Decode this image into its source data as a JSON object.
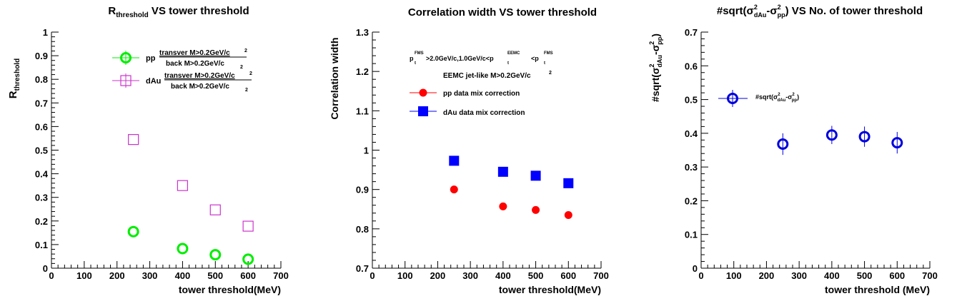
{
  "chart_data": [
    {
      "type": "scatter",
      "title_main": "R",
      "title_sub": "threshold",
      "title_rest": " VS tower threshold",
      "xlabel": "tower threshold(MeV)",
      "ylabel_main": "R",
      "ylabel_sub": "threshold",
      "xlim": [
        0,
        700
      ],
      "ylim": [
        0,
        1
      ],
      "xticks": [
        0,
        100,
        200,
        300,
        400,
        500,
        600,
        700
      ],
      "xtick_labels": [
        "0",
        "100",
        "200",
        "300",
        "400",
        "500",
        "600",
        "700"
      ],
      "yticks": [
        0,
        0.1,
        0.2,
        0.3,
        0.4,
        0.5,
        0.6,
        0.7,
        0.8,
        0.9,
        1
      ],
      "ytick_labels": [
        "0",
        "0.1",
        "0.2",
        "0.3",
        "0.4",
        "0.5",
        "0.6",
        "0.7",
        "0.8",
        "0.9",
        "1"
      ],
      "legend_position": "top-center",
      "legend": [
        {
          "name": "pp",
          "numerator": "transver M>0.2GeV/c",
          "denominator": "back M>0.2GeV/c",
          "exp": "2"
        },
        {
          "name": "dAu",
          "numerator": "transver M>0.2GeV/c",
          "denominator": "back M>0.2GeV/c",
          "exp": "2"
        }
      ],
      "series": [
        {
          "name": "pp",
          "marker": "open-circle",
          "color": "#00ee00",
          "x": [
            250,
            400,
            500,
            600
          ],
          "y": [
            0.155,
            0.083,
            0.057,
            0.038
          ]
        },
        {
          "name": "dAu",
          "marker": "open-square",
          "color": "#cc33cc",
          "x": [
            250,
            400,
            500,
            600
          ],
          "y": [
            0.545,
            0.35,
            0.247,
            0.178
          ]
        }
      ]
    },
    {
      "type": "scatter",
      "title": "Correlation width VS tower threshold",
      "xlabel": "tower threshold(MeV)",
      "ylabel": "Correlation width",
      "xlim": [
        0,
        700
      ],
      "ylim": [
        0.7,
        1.3
      ],
      "xticks": [
        0,
        100,
        200,
        300,
        400,
        500,
        600,
        700
      ],
      "xtick_labels": [
        "0",
        "100",
        "200",
        "300",
        "400",
        "500",
        "600",
        "700"
      ],
      "yticks": [
        0.7,
        0.8,
        0.9,
        1.0,
        1.1,
        1.2,
        1.3
      ],
      "ytick_labels": [
        "0.7",
        "0.8",
        "0.9",
        "1",
        "1.1",
        "1.2",
        "1.3"
      ],
      "legend_position": "top-center",
      "legend_header": {
        "line1_a": "p",
        "line1_a_sup": "FMS",
        "line1_a_sub": "t",
        "line1_b": ">2.0GeV/c,1.0GeV/c<p",
        "line1_b_sup": "EEMC",
        "line1_b_sub": "t",
        "line1_c": "<p",
        "line1_c_sup": "FMS",
        "line1_c_sub": "t",
        "line2": "EEMC jet-like M>0.2GeV/c",
        "line2_exp": "2"
      },
      "legend": [
        {
          "name": "pp data mix correction"
        },
        {
          "name": "dAu data mix correction"
        }
      ],
      "series": [
        {
          "name": "pp data mix correction",
          "marker": "filled-circle",
          "color": "#ff0000",
          "x": [
            250,
            400,
            500,
            600
          ],
          "y": [
            0.9,
            0.857,
            0.848,
            0.835
          ]
        },
        {
          "name": "dAu data mix correction",
          "marker": "filled-square",
          "color": "#0000ff",
          "x": [
            250,
            400,
            500,
            600
          ],
          "y": [
            0.973,
            0.945,
            0.935,
            0.916
          ]
        }
      ]
    },
    {
      "type": "scatter",
      "title_pre": "#sqrt(",
      "title_sigma": "σ",
      "title_sup": "2",
      "title_sub1": "dAu",
      "title_minus": "-",
      "title_sub2": "pp",
      "title_post": ") VS No. of tower threshold",
      "xlabel": "tower threshold (MeV)",
      "ylabel_pre": "#sqrt(",
      "ylabel_sigma": "σ",
      "ylabel_sup": "2",
      "ylabel_sub1": "dAu",
      "ylabel_minus": "-",
      "ylabel_sub2": "pp",
      "ylabel_post": ")",
      "xlim": [
        0,
        700
      ],
      "ylim": [
        0,
        0.7
      ],
      "xticks": [
        0,
        100,
        200,
        300,
        400,
        500,
        600,
        700
      ],
      "xtick_labels": [
        "0",
        "100",
        "200",
        "300",
        "400",
        "500",
        "600",
        "700"
      ],
      "yticks": [
        0,
        0.1,
        0.2,
        0.3,
        0.4,
        0.5,
        0.6,
        0.7
      ],
      "ytick_labels": [
        "0",
        "0.1",
        "0.2",
        "0.3",
        "0.4",
        "0.5",
        "0.6",
        "0.7"
      ],
      "legend_position": "top-left",
      "legend": [
        {
          "name_pre": "#sqrt(",
          "name_sigma": "σ",
          "name_sup": "2",
          "name_sub1": "dAu",
          "name_minus": "-",
          "name_sub2": "pp",
          "name_post": ")"
        }
      ],
      "series": [
        {
          "name": "#sqrt(σ²dAu-σ²pp)",
          "marker": "open-circle",
          "color": "#0000dd",
          "x": [
            250,
            400,
            500,
            600
          ],
          "y": [
            0.368,
            0.395,
            0.39,
            0.372
          ],
          "yerr": [
            0.032,
            0.027,
            0.03,
            0.032
          ]
        }
      ]
    }
  ]
}
